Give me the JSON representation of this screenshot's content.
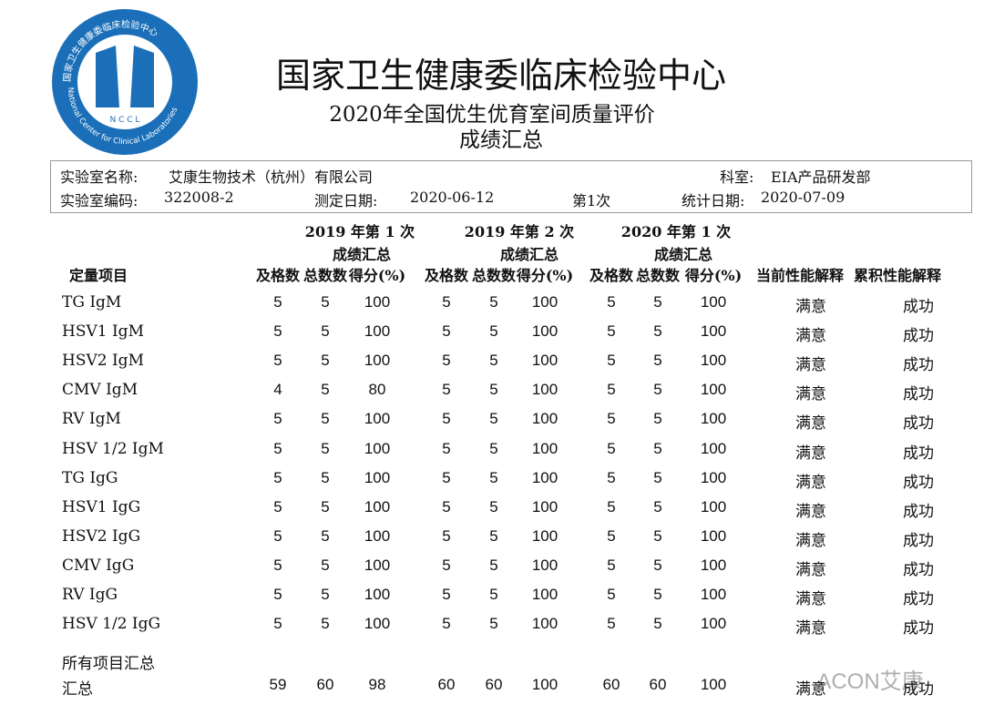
{
  "logo": {
    "ring_cn": "国家卫生健康委临床检验中心",
    "ring_en": "National Center for Clinical Laboratories",
    "letters": "N C C L"
  },
  "header": {
    "org": "国家卫生健康委临床检验中心",
    "title": "2020年全国优生优育室间质量评价",
    "subtitle": "成绩汇总"
  },
  "info": {
    "lab_name_label": "实验室名称:",
    "lab_name": "艾康生物技术（杭州）有限公司",
    "dept_label": "科室:",
    "dept": "EIA产品研发部",
    "lab_code_label": "实验室编码:",
    "lab_code": "322008-2",
    "test_date_label": "测定日期:",
    "test_date": "2020-06-12",
    "round": "第1次",
    "stat_date_label": "统计日期:",
    "stat_date": "2020-07-09"
  },
  "table": {
    "item_header": "定量项目",
    "groups": [
      {
        "name": "2019 年第 1 次",
        "sub": "成绩汇总",
        "columns": [
          "及格数",
          "总数数",
          "得分(%)"
        ]
      },
      {
        "name": "2019 年第 2 次",
        "sub": "成绩汇总",
        "columns": [
          "及格数",
          "总数数",
          "得分(%)"
        ]
      },
      {
        "name": "2020 年第 1 次",
        "sub": "成绩汇总",
        "columns": [
          "及格数",
          "总数数",
          "得分(%)"
        ]
      }
    ],
    "extra_columns": [
      "当前性能解释",
      "累积性能解释"
    ],
    "rows": [
      [
        "TG IgM",
        5,
        5,
        100,
        5,
        5,
        100,
        5,
        5,
        100,
        "满意",
        "成功"
      ],
      [
        "HSV1 IgM",
        5,
        5,
        100,
        5,
        5,
        100,
        5,
        5,
        100,
        "满意",
        "成功"
      ],
      [
        "HSV2 IgM",
        5,
        5,
        100,
        5,
        5,
        100,
        5,
        5,
        100,
        "满意",
        "成功"
      ],
      [
        "CMV IgM",
        4,
        5,
        80,
        5,
        5,
        100,
        5,
        5,
        100,
        "满意",
        "成功"
      ],
      [
        "RV IgM",
        5,
        5,
        100,
        5,
        5,
        100,
        5,
        5,
        100,
        "满意",
        "成功"
      ],
      [
        "HSV 1/2 IgM",
        5,
        5,
        100,
        5,
        5,
        100,
        5,
        5,
        100,
        "满意",
        "成功"
      ],
      [
        "TG IgG",
        5,
        5,
        100,
        5,
        5,
        100,
        5,
        5,
        100,
        "满意",
        "成功"
      ],
      [
        "HSV1 IgG",
        5,
        5,
        100,
        5,
        5,
        100,
        5,
        5,
        100,
        "满意",
        "成功"
      ],
      [
        "HSV2 IgG",
        5,
        5,
        100,
        5,
        5,
        100,
        5,
        5,
        100,
        "满意",
        "成功"
      ],
      [
        "CMV IgG",
        5,
        5,
        100,
        5,
        5,
        100,
        5,
        5,
        100,
        "满意",
        "成功"
      ],
      [
        "RV IgG",
        5,
        5,
        100,
        5,
        5,
        100,
        5,
        5,
        100,
        "满意",
        "成功"
      ],
      [
        "HSV 1/2 IgG",
        5,
        5,
        100,
        5,
        5,
        100,
        5,
        5,
        100,
        "满意",
        "成功"
      ]
    ],
    "section_label": "所有项目汇总",
    "total_row": [
      "汇总",
      59,
      60,
      98,
      60,
      60,
      100,
      60,
      60,
      100,
      "满意",
      "成功"
    ]
  },
  "watermark": "ACON艾康"
}
